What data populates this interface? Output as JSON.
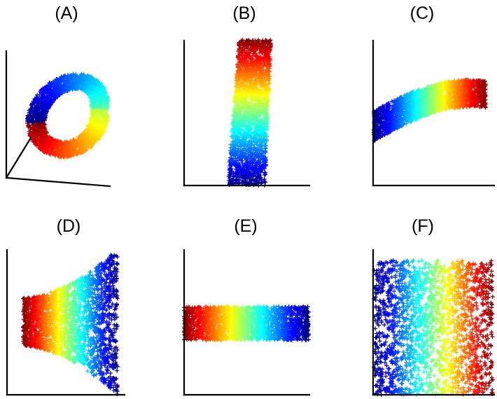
{
  "figure": {
    "panels": [
      {
        "id": "A",
        "label": "(A)",
        "view": "3d-swiss-roll"
      },
      {
        "id": "B",
        "label": "(B)",
        "view": "vertical-strip"
      },
      {
        "id": "C",
        "label": "(C)",
        "view": "curved-strip"
      },
      {
        "id": "D",
        "label": "(D)",
        "view": "fan-strip"
      },
      {
        "id": "E",
        "label": "(E)",
        "view": "horizontal-strip"
      },
      {
        "id": "F",
        "label": "(F)",
        "view": "square-spread"
      }
    ],
    "colormap": "jet",
    "marker": "plus-sign",
    "colors": {
      "dark_blue": "#00008f",
      "blue": "#0000ff",
      "cyan": "#00ffff",
      "yellow": "#ffff00",
      "red": "#ff0000",
      "dark_red": "#800000"
    }
  }
}
